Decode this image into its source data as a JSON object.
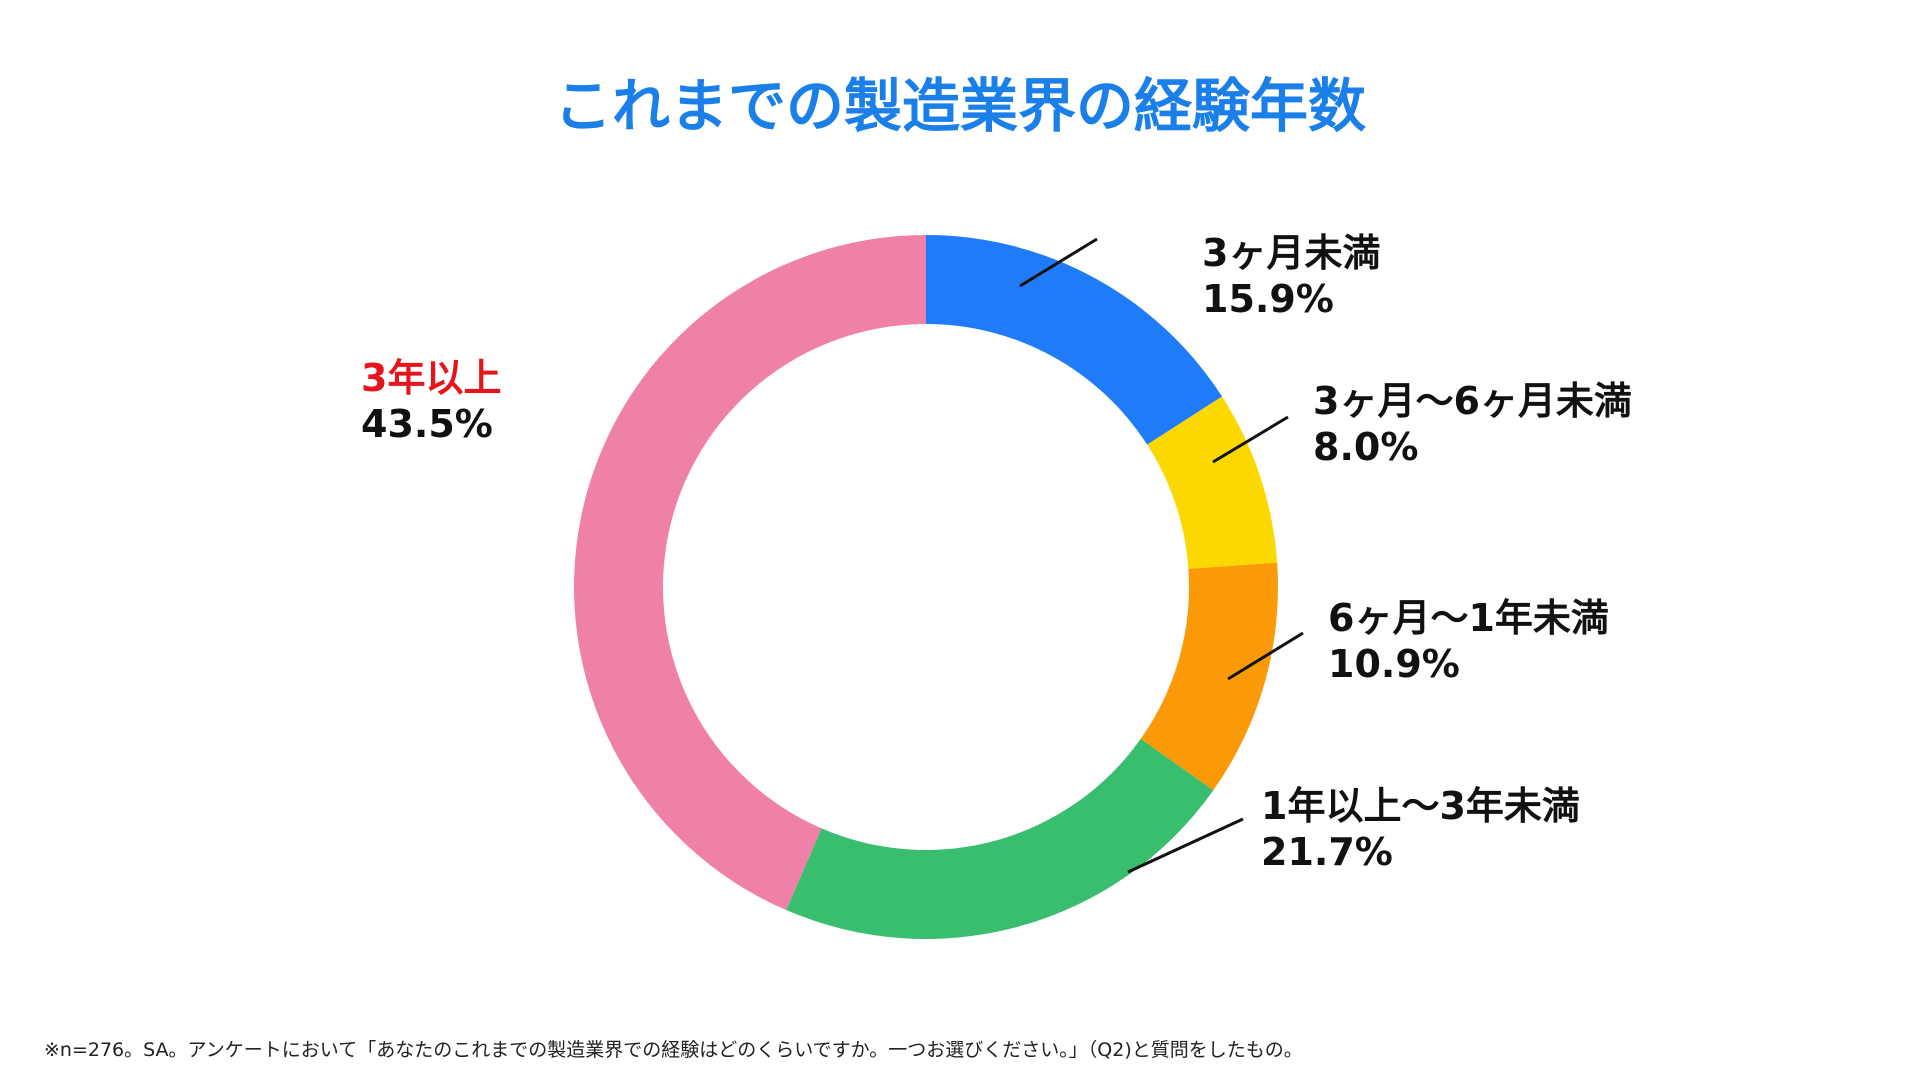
{
  "chart_data": {
    "type": "donut",
    "title": "これまでの製造業界の経験年数",
    "categories": [
      "3ヶ月未満",
      "3ヶ月〜6ヶ月未満",
      "6ヶ月〜1年未満",
      "1年以上〜3年未満",
      "3年以上"
    ],
    "values": [
      15.9,
      8.0,
      10.9,
      21.7,
      43.5
    ],
    "value_labels": [
      "15.9%",
      "8.0%",
      "10.9%",
      "21.7%",
      "43.5%"
    ],
    "colors": [
      "#1f7bf7",
      "#fbd800",
      "#fa9a08",
      "#38be6e",
      "#ef80a8"
    ],
    "label_colors": [
      "#111111",
      "#111111",
      "#111111",
      "#111111",
      "#e5151b"
    ],
    "note": "※n=276。SA。アンケートにおいて「あなたのこれまでの製造業界での経験はどのくらいですか。一つお選びください。」（Q2)と質問をしたもの。"
  }
}
